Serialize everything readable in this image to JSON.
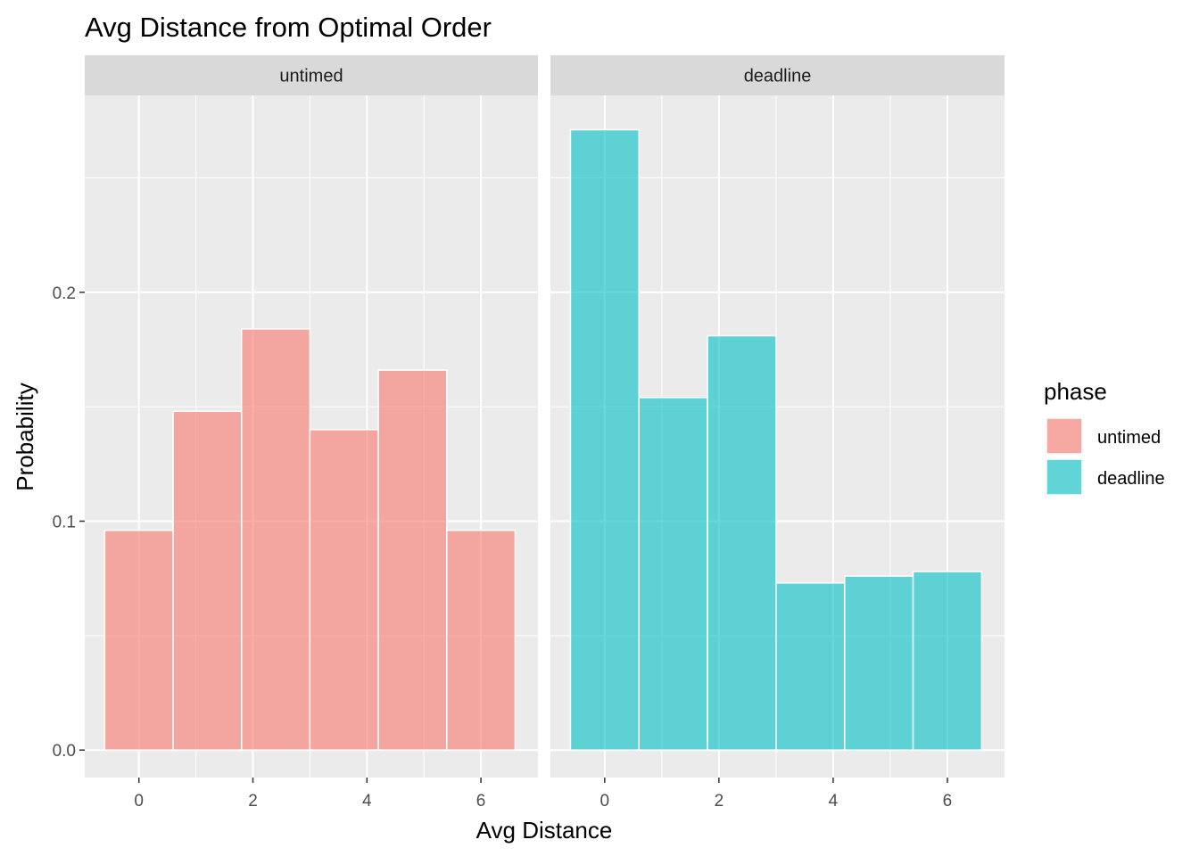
{
  "chart_data": {
    "type": "bar",
    "subtype": "faceted histogram",
    "title": "Avg Distance from Optimal Order",
    "xlabel": "Avg Distance",
    "ylabel": "Probability",
    "xlim": [
      -0.95,
      7.0
    ],
    "ylim": [
      -0.012,
      0.286
    ],
    "x_ticks": [
      0,
      2,
      4,
      6
    ],
    "y_ticks": [
      0.0,
      0.1,
      0.2
    ],
    "y_tick_labels": [
      "0.0",
      "0.1",
      "0.2"
    ],
    "grid": true,
    "bin_edges": [
      -0.6,
      0.6,
      1.8,
      3.0,
      4.2,
      5.4,
      6.6
    ],
    "legend": {
      "title": "phase",
      "position": "right",
      "entries": [
        {
          "label": "untimed",
          "color": "#F8766D"
        },
        {
          "label": "deadline",
          "color": "#00BFC4"
        }
      ]
    },
    "facets": [
      {
        "label": "untimed",
        "color": "#F8766D",
        "values": [
          0.096,
          0.148,
          0.184,
          0.14,
          0.166,
          0.096
        ]
      },
      {
        "label": "deadline",
        "color": "#00BFC4",
        "values": [
          0.271,
          0.154,
          0.181,
          0.073,
          0.076,
          0.078
        ]
      }
    ]
  }
}
